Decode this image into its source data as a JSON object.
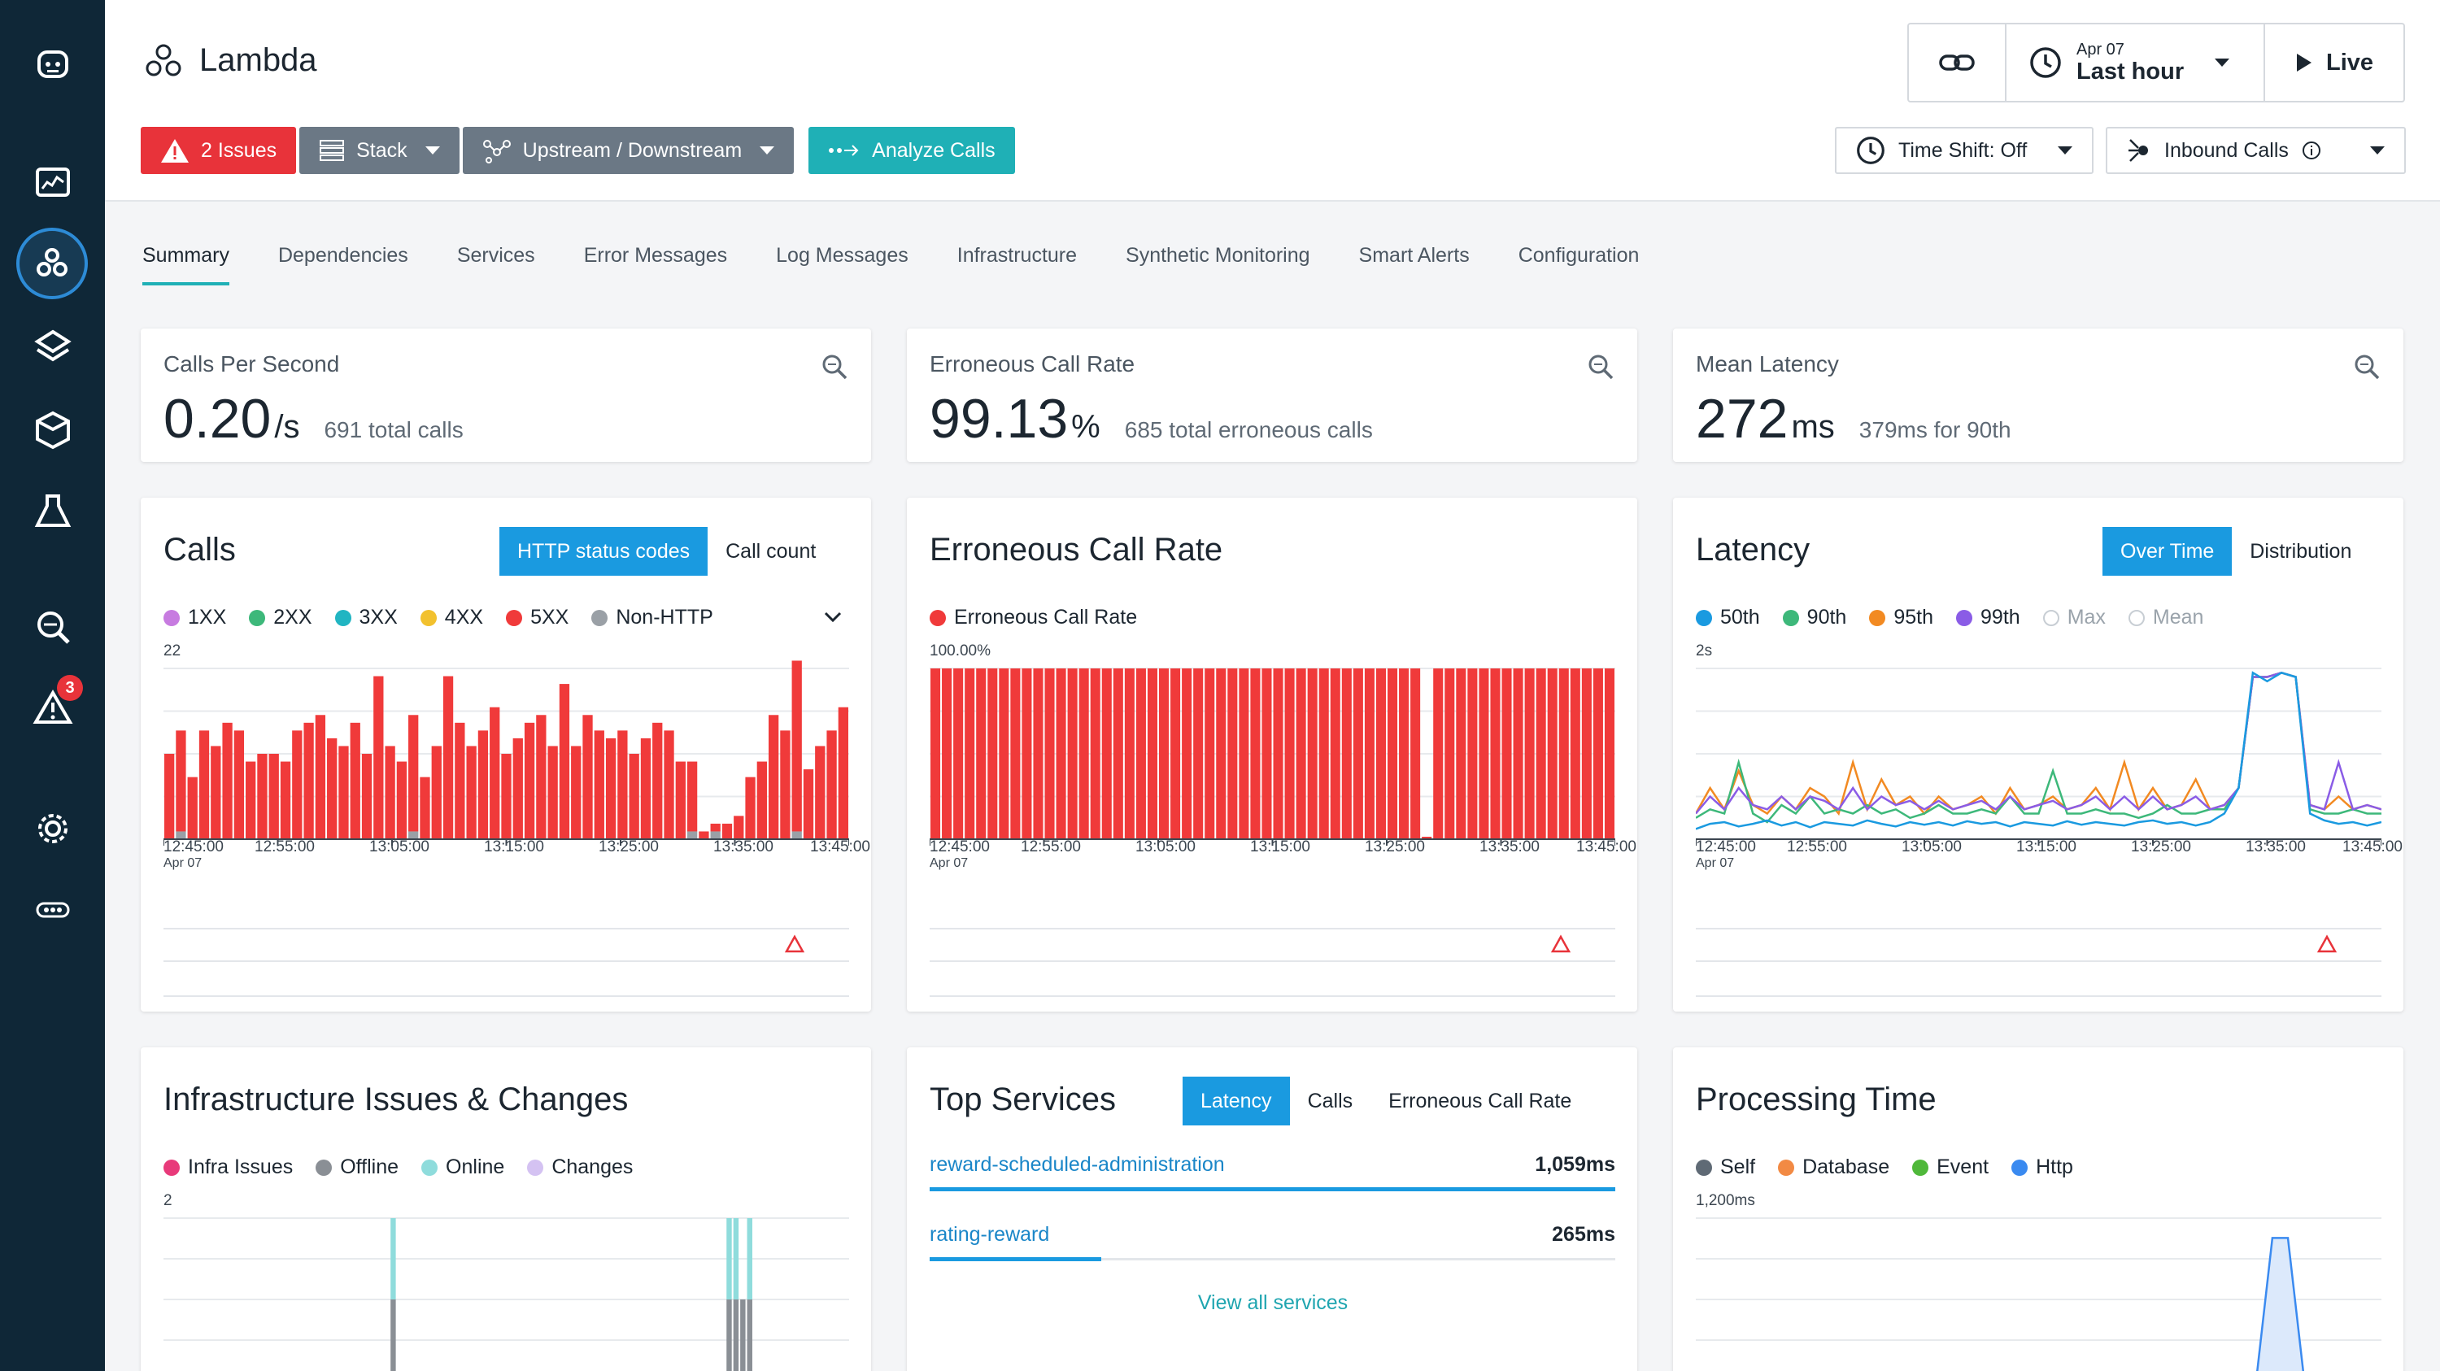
{
  "app": {
    "title": "Lambda"
  },
  "header": {
    "issues_label": "2 Issues",
    "stack_label": "Stack",
    "updown_label": "Upstream / Downstream",
    "analyze_label": "Analyze Calls",
    "date": "Apr 07",
    "range": "Last hour",
    "live_label": "Live",
    "time_shift_label": "Time Shift: Off",
    "inbound_label": "Inbound Calls"
  },
  "sidebar": {
    "alerts_badge": "3"
  },
  "tabs": [
    "Summary",
    "Dependencies",
    "Services",
    "Error Messages",
    "Log Messages",
    "Infrastructure",
    "Synthetic Monitoring",
    "Smart Alerts",
    "Configuration"
  ],
  "kpis": [
    {
      "label": "Calls Per Second",
      "value": "0.20",
      "unit": "/s",
      "sub": "691 total calls"
    },
    {
      "label": "Erroneous Call Rate",
      "value": "99.13",
      "unit": "%",
      "sub": "685 total erroneous calls"
    },
    {
      "label": "Mean Latency",
      "value": "272",
      "unit": "ms",
      "sub": "379ms for 90th"
    }
  ],
  "calls_card": {
    "title": "Calls",
    "toggle": [
      "HTTP status codes",
      "Call count"
    ],
    "legend": [
      {
        "label": "1XX",
        "color": "#c77be0"
      },
      {
        "label": "2XX",
        "color": "#3db87a"
      },
      {
        "label": "3XX",
        "color": "#21b5c2"
      },
      {
        "label": "4XX",
        "color": "#f2c12e"
      },
      {
        "label": "5XX",
        "color": "#f03a3a"
      },
      {
        "label": "Non-HTTP",
        "color": "#9aa0a6"
      }
    ],
    "ymax": "22"
  },
  "ecr_card": {
    "title": "Erroneous Call Rate",
    "legend": [
      {
        "label": "Erroneous Call Rate",
        "color": "#f03a3a"
      }
    ],
    "ymax": "100.00%"
  },
  "latency_card": {
    "title": "Latency",
    "toggle": [
      "Over Time",
      "Distribution"
    ],
    "legend": [
      {
        "label": "50th",
        "color": "#1a9ae0"
      },
      {
        "label": "90th",
        "color": "#3db87a"
      },
      {
        "label": "95th",
        "color": "#f28a22"
      },
      {
        "label": "99th",
        "color": "#8a5ce6"
      },
      {
        "label": "Max",
        "color": ""
      },
      {
        "label": "Mean",
        "color": ""
      }
    ],
    "ymax": "2s"
  },
  "x_ticks": {
    "first": "12:45:00",
    "first_date": "Apr 07",
    "labels": [
      "12:55:00",
      "13:05:00",
      "13:15:00",
      "13:25:00",
      "13:35:00",
      "13:45:00"
    ]
  },
  "infra_card": {
    "title": "Infrastructure Issues & Changes",
    "legend": [
      {
        "label": "Infra Issues",
        "color": "#e83a7a"
      },
      {
        "label": "Offline",
        "color": "#8a8f95"
      },
      {
        "label": "Online",
        "color": "#8fdcdc"
      },
      {
        "label": "Changes",
        "color": "#d4c2f2"
      }
    ],
    "ymax": "2"
  },
  "top_services": {
    "title": "Top Services",
    "toggle": [
      "Latency",
      "Calls",
      "Erroneous Call Rate"
    ],
    "items": [
      {
        "name": "reward-scheduled-administration",
        "value": "1,059ms",
        "fraction": 1.0
      },
      {
        "name": "rating-reward",
        "value": "265ms",
        "fraction": 0.25
      }
    ],
    "view_all": "View all services"
  },
  "processing_card": {
    "title": "Processing Time",
    "legend": [
      {
        "label": "Self",
        "color": "#5f6a75"
      },
      {
        "label": "Database",
        "color": "#f28a44"
      },
      {
        "label": "Event",
        "color": "#4fb83a"
      },
      {
        "label": "Http",
        "color": "#3a8af0"
      }
    ],
    "ymax": "1,200ms"
  },
  "chart_data": [
    {
      "type": "bar",
      "title": "Calls",
      "ylim": [
        0,
        22
      ],
      "series": [
        {
          "name": "5XX",
          "values": [
            11,
            13,
            8,
            14,
            12,
            15,
            14,
            10,
            11,
            11,
            10,
            14,
            15,
            16,
            13,
            12,
            15,
            11,
            21,
            12,
            10,
            15,
            8,
            12,
            21,
            15,
            12,
            14,
            17,
            11,
            13,
            15,
            16,
            12,
            20,
            12,
            16,
            14,
            13,
            14,
            11,
            13,
            15,
            14,
            10,
            9,
            1,
            1,
            2,
            3,
            8,
            10,
            16,
            14,
            22,
            9,
            12,
            14,
            17
          ]
        },
        {
          "name": "Non-HTTP",
          "values": [
            0,
            1,
            0,
            0,
            0,
            0,
            0,
            0,
            0,
            0,
            0,
            0,
            0,
            0,
            0,
            0,
            0,
            0,
            0,
            0,
            0,
            1,
            0,
            0,
            0,
            0,
            0,
            0,
            0,
            0,
            0,
            0,
            0,
            0,
            0,
            0,
            0,
            0,
            0,
            0,
            0,
            0,
            0,
            0,
            0,
            1,
            0,
            1,
            0,
            0,
            0,
            0,
            0,
            0,
            1,
            0,
            0,
            0,
            0
          ]
        }
      ]
    },
    {
      "type": "bar",
      "title": "Erroneous Call Rate",
      "ylim": [
        0,
        100
      ],
      "series": [
        {
          "name": "Erroneous Call Rate",
          "values": [
            100,
            100,
            100,
            100,
            100,
            100,
            100,
            100,
            100,
            100,
            100,
            100,
            100,
            100,
            100,
            100,
            100,
            100,
            100,
            100,
            100,
            100,
            100,
            100,
            100,
            100,
            100,
            100,
            100,
            100,
            100,
            100,
            100,
            100,
            100,
            100,
            100,
            100,
            100,
            100,
            100,
            100,
            100,
            0,
            100,
            100,
            100,
            100,
            100,
            100,
            100,
            100,
            100,
            100,
            100,
            100,
            100,
            100,
            100,
            100
          ]
        }
      ]
    },
    {
      "type": "line",
      "title": "Latency",
      "ylim": [
        0,
        2
      ],
      "series": [
        {
          "name": "50th",
          "values": [
            0.12,
            0.18,
            0.2,
            0.15,
            0.18,
            0.22,
            0.16,
            0.2,
            0.14,
            0.2,
            0.18,
            0.16,
            0.22,
            0.18,
            0.15,
            0.2,
            0.17,
            0.2,
            0.16,
            0.21,
            0.18,
            0.2,
            0.15,
            0.2,
            0.18,
            0.16,
            0.21,
            0.17,
            0.2,
            0.18,
            0.16,
            0.2,
            0.22,
            0.18,
            0.2,
            0.16,
            0.2,
            0.3,
            0.6,
            1.95,
            1.85,
            1.95,
            1.9,
            0.3,
            0.22,
            0.18,
            0.2,
            0.16,
            0.2
          ]
        },
        {
          "name": "90th",
          "values": [
            0.25,
            0.35,
            0.3,
            0.9,
            0.3,
            0.2,
            0.4,
            0.3,
            0.5,
            0.3,
            0.35,
            0.3,
            0.4,
            0.3,
            0.35,
            0.25,
            0.3,
            0.4,
            0.3,
            0.3,
            0.35,
            0.3,
            0.5,
            0.3,
            0.3,
            0.8,
            0.3,
            0.3,
            0.35,
            0.3,
            0.3,
            0.25,
            0.3,
            0.4,
            0.3,
            0.3,
            0.35,
            0.35,
            0.6,
            1.9,
            1.9,
            1.95,
            1.9,
            0.35,
            0.3,
            0.3,
            0.35,
            0.3,
            0.3
          ]
        },
        {
          "name": "95th",
          "values": [
            0.3,
            0.6,
            0.35,
            0.8,
            0.4,
            0.3,
            0.5,
            0.35,
            0.6,
            0.5,
            0.3,
            0.9,
            0.35,
            0.7,
            0.4,
            0.5,
            0.3,
            0.5,
            0.35,
            0.4,
            0.5,
            0.3,
            0.6,
            0.35,
            0.4,
            0.5,
            0.35,
            0.4,
            0.6,
            0.35,
            0.9,
            0.35,
            0.6,
            0.35,
            0.4,
            0.7,
            0.35,
            0.4,
            0.6,
            1.9,
            1.9,
            1.95,
            1.9,
            0.4,
            0.35,
            0.5,
            0.35,
            0.4,
            0.35
          ]
        },
        {
          "name": "99th",
          "values": [
            0.3,
            0.5,
            0.35,
            0.6,
            0.4,
            0.35,
            0.5,
            0.35,
            0.5,
            0.45,
            0.35,
            0.6,
            0.35,
            0.5,
            0.4,
            0.45,
            0.35,
            0.45,
            0.35,
            0.4,
            0.45,
            0.35,
            0.5,
            0.35,
            0.4,
            0.45,
            0.35,
            0.4,
            0.5,
            0.35,
            0.5,
            0.35,
            0.5,
            0.35,
            0.4,
            0.5,
            0.35,
            0.4,
            0.6,
            1.9,
            1.9,
            1.95,
            1.9,
            0.4,
            0.35,
            0.9,
            0.35,
            0.4,
            0.35
          ]
        }
      ]
    },
    {
      "type": "bar",
      "title": "Infrastructure Issues & Changes",
      "ylim": [
        0,
        2
      ],
      "series": [
        {
          "name": "Offline",
          "values": [
            0,
            0,
            0,
            0,
            0,
            0,
            0,
            0,
            0,
            0,
            0,
            0,
            0,
            0,
            0,
            0,
            0,
            0,
            0,
            0,
            0,
            0,
            0,
            0,
            0,
            0,
            0,
            0,
            0,
            0,
            0,
            0,
            0,
            1,
            0,
            0,
            0,
            0,
            0,
            0,
            0,
            0,
            0,
            0,
            0,
            0,
            0,
            0,
            0,
            0,
            0,
            0,
            0,
            0,
            0,
            0,
            0,
            0,
            0,
            0,
            0,
            0,
            0,
            0,
            0,
            0,
            0,
            0,
            0,
            0,
            0,
            0,
            0,
            0,
            0,
            0,
            0,
            0,
            0,
            0,
            0,
            0,
            1,
            1,
            1,
            1,
            0,
            0,
            0,
            0,
            0,
            0,
            0,
            0,
            0,
            0,
            0,
            0,
            0,
            0
          ]
        },
        {
          "name": "Online",
          "values": [
            0,
            0,
            0,
            0,
            0,
            0,
            0,
            0,
            0,
            0,
            0,
            0,
            0,
            0,
            0,
            0,
            0,
            0,
            0,
            0,
            0,
            0,
            0,
            0,
            0,
            0,
            0,
            0,
            0,
            0,
            0,
            0,
            0,
            1,
            0,
            0,
            0,
            0,
            0,
            0,
            0,
            0,
            0,
            0,
            0,
            0,
            0,
            0,
            0,
            0,
            0,
            0,
            0,
            0,
            0,
            0,
            0,
            0,
            0,
            0,
            0,
            0,
            0,
            0,
            0,
            0,
            0,
            0,
            0,
            0,
            0,
            0,
            0,
            0,
            0,
            0,
            0,
            0,
            0,
            0,
            0,
            0,
            1,
            1,
            0,
            1,
            0,
            0,
            0,
            0,
            0,
            0,
            0,
            0,
            0,
            0,
            0,
            0,
            0,
            0
          ]
        }
      ]
    },
    {
      "type": "line",
      "title": "Processing Time",
      "ylim": [
        0,
        1200
      ],
      "series": [
        {
          "name": "Http",
          "values": [
            5,
            8,
            6,
            9,
            5,
            7,
            8,
            6,
            9,
            7,
            6,
            8,
            7,
            6,
            9,
            7,
            8,
            6,
            7,
            9,
            6,
            8,
            7,
            6,
            9,
            7,
            8,
            6,
            7,
            8,
            6,
            9,
            7,
            8,
            6,
            7,
            9,
            1050,
            1050,
            20,
            8,
            7,
            9,
            6,
            8
          ]
        }
      ]
    }
  ]
}
